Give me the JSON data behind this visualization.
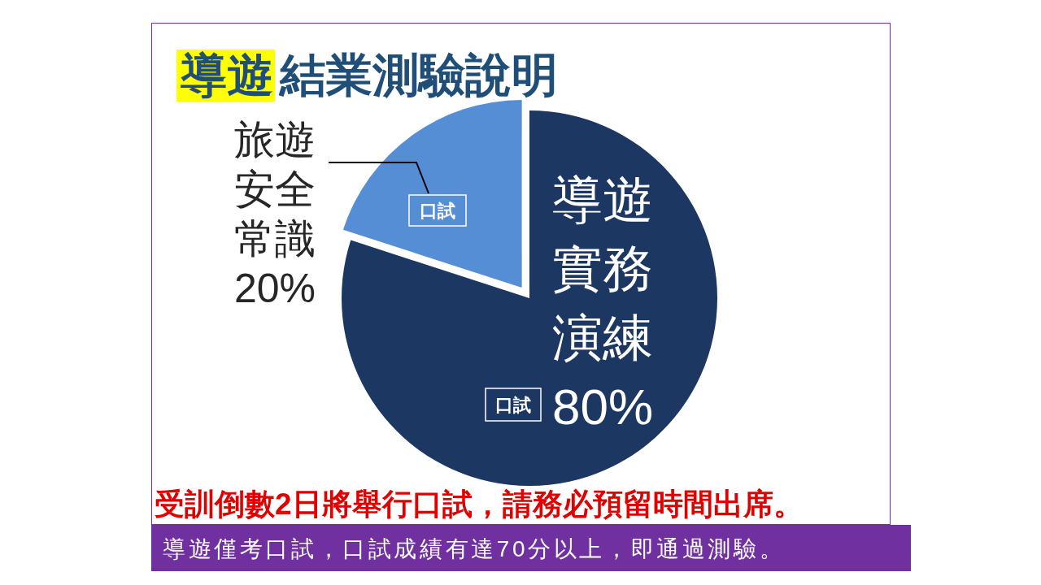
{
  "chart_data": {
    "type": "pie",
    "title": "導遊結業測驗說明",
    "categories": [
      "導遊實務演練",
      "旅遊安全常識"
    ],
    "values": [
      80,
      20
    ],
    "colors": [
      "#1c3761",
      "#558ed5"
    ],
    "value_labels": [
      "80%",
      "20%"
    ],
    "annotations": [
      "口試",
      "口試",
      "受訓倒數2日將舉行口試，請務必預留時間出席。",
      "導遊僅考口試，口試成績有達70分以上，即通過測驗。"
    ]
  }
}
